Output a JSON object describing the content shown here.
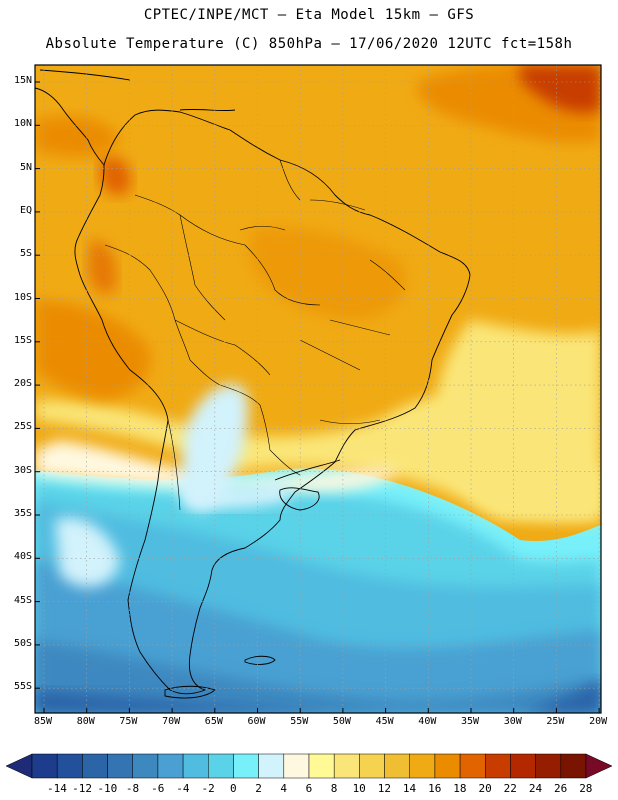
{
  "header": {
    "line1": "CPTEC/INPE/MCT –  Eta Model 15km – GFS",
    "line2": "Absolute Temperature (C) 850hPa – 17/06/2020 12UTC fct=158h"
  },
  "map": {
    "lat_labels": [
      "15N",
      "10N",
      "5N",
      "EQ",
      "5S",
      "10S",
      "15S",
      "20S",
      "25S",
      "30S",
      "35S",
      "40S",
      "45S",
      "50S",
      "55S"
    ],
    "lon_labels": [
      "85W",
      "80W",
      "75W",
      "70W",
      "65W",
      "60W",
      "55W",
      "50W",
      "45W",
      "40W",
      "35W",
      "30W",
      "25W",
      "20W"
    ]
  },
  "colorbar": {
    "labels": [
      "-14",
      "-12",
      "-10",
      "-8",
      "-6",
      "-4",
      "-2",
      "0",
      "2",
      "4",
      "6",
      "8",
      "10",
      "12",
      "14",
      "16",
      "18",
      "20",
      "22",
      "24",
      "26",
      "28"
    ],
    "colors": [
      "#1e3c8c",
      "#23509b",
      "#2c64a8",
      "#3574b2",
      "#3e88c0",
      "#4aa0d2",
      "#50bce0",
      "#5ad2e8",
      "#78f0fa",
      "#d2f2fc",
      "#fff8e0",
      "#fffa96",
      "#fae678",
      "#f5d250",
      "#f0be32",
      "#f0aa14",
      "#eb8c00",
      "#e16400",
      "#c83c00",
      "#b42800",
      "#961e00",
      "#781400"
    ],
    "arrow_left": "#1e2c78",
    "arrow_right": "#780a28"
  }
}
